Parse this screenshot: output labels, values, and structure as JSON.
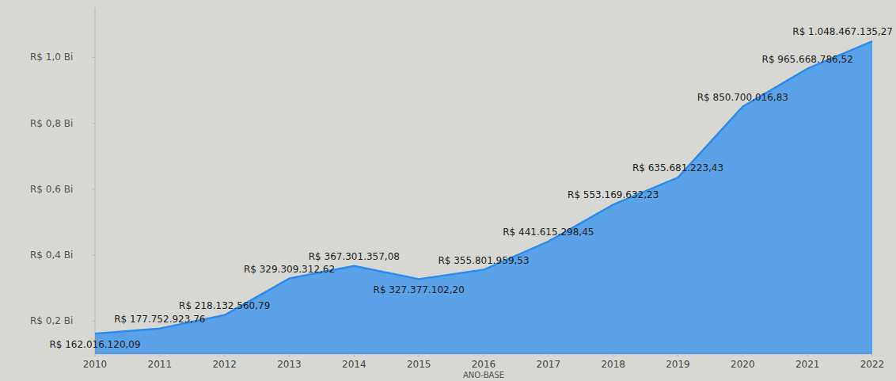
{
  "chart_data": {
    "type": "area",
    "x_label": "ANO-BASE",
    "x": [
      2010,
      2011,
      2012,
      2013,
      2014,
      2015,
      2016,
      2017,
      2018,
      2019,
      2020,
      2021,
      2022
    ],
    "values": [
      162016120.09,
      177752923.76,
      218132560.79,
      329309312.62,
      367301357.08,
      327377102.2,
      355801959.53,
      441615298.45,
      553169632.23,
      635681223.43,
      850700016.83,
      965668786.52,
      1048467135.27
    ],
    "value_labels": [
      "R$ 162.016.120,09",
      "R$ 177.752.923,76",
      "R$ 218.132.560,79",
      "R$ 329.309.312,62",
      "R$ 367.301.357,08",
      "R$ 327.377.102,20",
      "R$ 355.801.959,53",
      "R$ 441.615.298,45",
      "R$ 553.169.632,23",
      "R$ 635.681.223,43",
      "R$ 850.700.016,83",
      "R$ 965.668.786,52",
      "R$ 1.048.467.135,27"
    ],
    "color": "#2a8cf0",
    "xlim": [
      2010,
      2022
    ],
    "xticks": [
      2010,
      2011,
      2012,
      2013,
      2014,
      2015,
      2016,
      2017,
      2018,
      2019,
      2020,
      2021,
      2022
    ],
    "ylim": [
      100000000,
      1150000000
    ],
    "yticks": [
      {
        "value": 200000000,
        "label": "R$ 0,2 Bi"
      },
      {
        "value": 400000000,
        "label": "R$ 0,4 Bi"
      },
      {
        "value": 600000000,
        "label": "R$ 0,6 Bi"
      },
      {
        "value": 800000000,
        "label": "R$ 0,8 Bi"
      },
      {
        "value": 1000000000,
        "label": "R$ 1,0 Bi"
      }
    ],
    "grid": false,
    "data_labels": true
  }
}
